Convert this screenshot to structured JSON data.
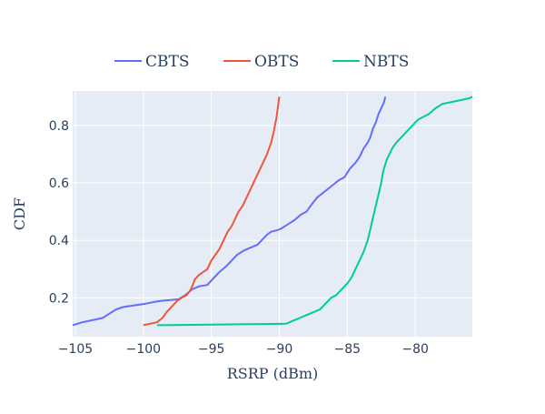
{
  "chart_data": {
    "type": "line",
    "title": "",
    "xlabel": "RSRP (dBm)",
    "ylabel": "CDF",
    "xlim": [
      -105.2,
      -75.8
    ],
    "ylim": [
      0.065,
      0.92
    ],
    "x_ticks": [
      -105,
      -100,
      -95,
      -90,
      -85,
      -80
    ],
    "x_tick_labels": [
      "−105",
      "−100",
      "−95",
      "−90",
      "−85",
      "−80"
    ],
    "y_ticks": [
      0.2,
      0.4,
      0.6,
      0.8
    ],
    "y_tick_labels": [
      "0.2",
      "0.4",
      "0.6",
      "0.8"
    ],
    "grid": true,
    "legend_position": "top",
    "series": [
      {
        "name": "CBTS",
        "color": "#636efa",
        "x": [
          -105.2,
          -104.5,
          -103.8,
          -103.0,
          -102.5,
          -102.0,
          -101.5,
          -101.2,
          -100.5,
          -99.8,
          -99.2,
          -98.6,
          -98.1,
          -97.4,
          -96.9,
          -96.4,
          -95.9,
          -95.3,
          -94.9,
          -94.4,
          -93.9,
          -93.5,
          -93.1,
          -92.6,
          -92.1,
          -91.6,
          -91.3,
          -90.9,
          -90.6,
          -90.2,
          -89.9,
          -89.4,
          -88.9,
          -88.4,
          -88.0,
          -87.7,
          -87.2,
          -86.8,
          -86.4,
          -86.0,
          -85.6,
          -85.2,
          -84.8,
          -84.4,
          -84.1,
          -83.8,
          -83.5,
          -83.3,
          -83.1,
          -82.9,
          -82.7,
          -82.5,
          -82.3,
          -82.2
        ],
        "y": [
          0.105,
          0.115,
          0.122,
          0.13,
          0.145,
          0.16,
          0.168,
          0.17,
          0.175,
          0.18,
          0.186,
          0.19,
          0.192,
          0.195,
          0.21,
          0.23,
          0.24,
          0.245,
          0.265,
          0.29,
          0.31,
          0.33,
          0.35,
          0.365,
          0.375,
          0.385,
          0.4,
          0.42,
          0.43,
          0.435,
          0.44,
          0.455,
          0.47,
          0.49,
          0.5,
          0.52,
          0.55,
          0.565,
          0.58,
          0.595,
          0.61,
          0.62,
          0.65,
          0.67,
          0.69,
          0.72,
          0.74,
          0.76,
          0.79,
          0.81,
          0.84,
          0.86,
          0.88,
          0.9
        ]
      },
      {
        "name": "OBTS",
        "color": "#ef553b",
        "x": [
          -100.0,
          -99.5,
          -99.0,
          -98.6,
          -98.3,
          -97.9,
          -97.5,
          -97.2,
          -96.8,
          -96.5,
          -96.2,
          -95.9,
          -95.6,
          -95.3,
          -95.0,
          -94.7,
          -94.4,
          -94.1,
          -93.8,
          -93.5,
          -93.2,
          -93.0,
          -92.7,
          -92.4,
          -92.1,
          -91.8,
          -91.5,
          -91.2,
          -90.9,
          -90.6,
          -90.4,
          -90.2,
          -90.0
        ],
        "y": [
          0.105,
          0.11,
          0.115,
          0.13,
          0.15,
          0.17,
          0.19,
          0.2,
          0.21,
          0.23,
          0.265,
          0.28,
          0.29,
          0.3,
          0.33,
          0.35,
          0.37,
          0.4,
          0.43,
          0.45,
          0.48,
          0.5,
          0.52,
          0.55,
          0.58,
          0.61,
          0.64,
          0.67,
          0.7,
          0.74,
          0.78,
          0.83,
          0.9
        ]
      },
      {
        "name": "NBTS",
        "color": "#00cc96",
        "x": [
          -99.0,
          -97.0,
          -95.0,
          -93.0,
          -91.0,
          -89.5,
          -89.0,
          -88.5,
          -88.0,
          -87.5,
          -87.0,
          -86.6,
          -86.2,
          -85.8,
          -85.4,
          -85.0,
          -84.7,
          -84.4,
          -84.1,
          -83.8,
          -83.5,
          -83.3,
          -83.1,
          -82.9,
          -82.7,
          -82.5,
          -82.4,
          -82.3,
          -82.1,
          -81.9,
          -81.7,
          -81.4,
          -81.0,
          -80.6,
          -80.2,
          -79.8,
          -79.4,
          -79.0,
          -78.5,
          -78.0,
          -77.0,
          -76.0,
          -75.8
        ],
        "y": [
          0.105,
          0.106,
          0.107,
          0.108,
          0.109,
          0.11,
          0.12,
          0.13,
          0.14,
          0.15,
          0.16,
          0.18,
          0.2,
          0.21,
          0.23,
          0.25,
          0.27,
          0.3,
          0.33,
          0.36,
          0.4,
          0.44,
          0.48,
          0.52,
          0.56,
          0.6,
          0.63,
          0.65,
          0.68,
          0.7,
          0.72,
          0.74,
          0.76,
          0.78,
          0.8,
          0.82,
          0.83,
          0.84,
          0.86,
          0.875,
          0.885,
          0.895,
          0.9
        ]
      }
    ]
  }
}
